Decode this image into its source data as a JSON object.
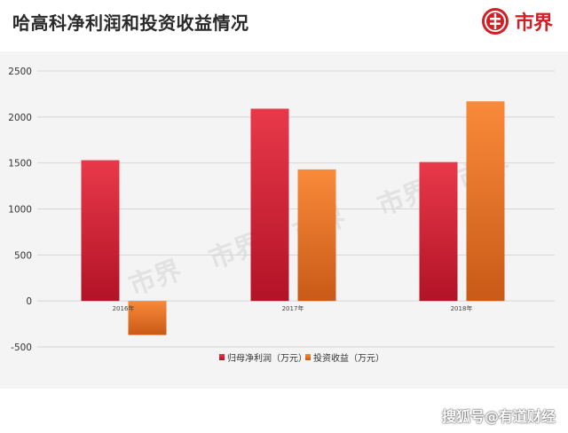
{
  "header": {
    "title": "哈高科净利润和投资收益情况",
    "logo_text": "市界"
  },
  "chart_data": {
    "type": "bar",
    "categories": [
      "2016年",
      "2017年",
      "2018年"
    ],
    "series": [
      {
        "name": "归母净利润（万元）",
        "values": [
          1530,
          2090,
          1510
        ]
      },
      {
        "name": "投资收益（万元）",
        "values": [
          -370,
          1430,
          2170
        ]
      }
    ],
    "ylim": [
      -500,
      2500
    ],
    "yticks": [
      2500,
      2000,
      1500,
      1000,
      500,
      0,
      -500
    ],
    "grid": true,
    "legend_position": "bottom-center",
    "colors": {
      "series_0_top": "#e8394a",
      "series_0_bottom": "#b21326",
      "series_1_top": "#f98a3a",
      "series_1_bottom": "#c95a17"
    }
  },
  "watermark": {
    "chart_text": "市界",
    "footer_text": "搜狐号@有道财经"
  }
}
